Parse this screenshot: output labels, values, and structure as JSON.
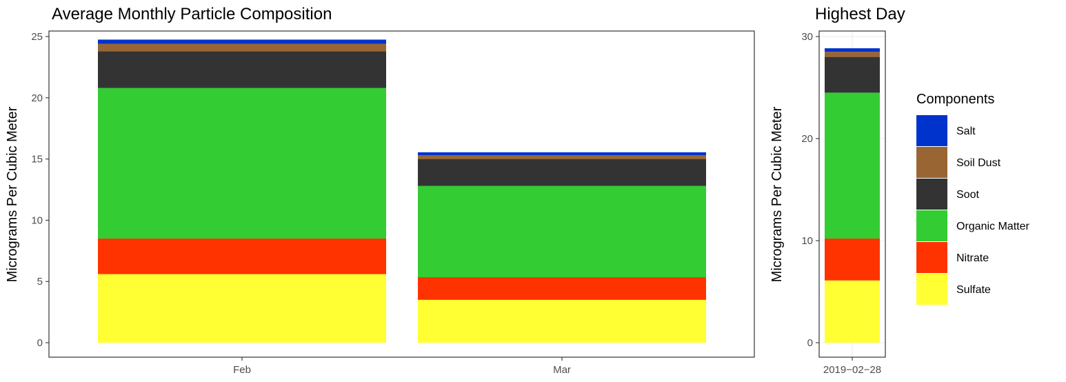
{
  "chart_data": [
    {
      "type": "bar",
      "stacked": true,
      "title": "Average Monthly Particle Composition",
      "xlabel": "",
      "ylabel": "Micrograms Per Cubic Meter",
      "categories": [
        "Feb",
        "Mar"
      ],
      "ylim": [
        0,
        25
      ],
      "yticks": [
        0,
        5,
        10,
        15,
        20,
        25
      ],
      "grid": false,
      "series": [
        {
          "name": "Sulfate",
          "color": "#FFFF33",
          "values": [
            5.6,
            3.5
          ]
        },
        {
          "name": "Nitrate",
          "color": "#FF3300",
          "values": [
            2.9,
            1.85
          ]
        },
        {
          "name": "Organic Matter",
          "color": "#33CC33",
          "values": [
            12.3,
            7.45
          ]
        },
        {
          "name": "Soot",
          "color": "#333333",
          "values": [
            3.0,
            2.2
          ]
        },
        {
          "name": "Soil Dust",
          "color": "#996633",
          "values": [
            0.6,
            0.3
          ]
        },
        {
          "name": "Salt",
          "color": "#0033CC",
          "values": [
            0.35,
            0.25
          ]
        }
      ]
    },
    {
      "type": "bar",
      "stacked": true,
      "title": "Highest Day",
      "xlabel": "",
      "ylabel": "Micrograms Per Cubic Meter",
      "categories": [
        "2019−02−28"
      ],
      "ylim": [
        0,
        30
      ],
      "yticks": [
        0,
        10,
        20,
        30
      ],
      "grid": true,
      "series": [
        {
          "name": "Sulfate",
          "color": "#FFFF33",
          "values": [
            6.1
          ]
        },
        {
          "name": "Nitrate",
          "color": "#FF3300",
          "values": [
            4.1
          ]
        },
        {
          "name": "Organic Matter",
          "color": "#33CC33",
          "values": [
            14.3
          ]
        },
        {
          "name": "Soot",
          "color": "#333333",
          "values": [
            3.5
          ]
        },
        {
          "name": "Soil Dust",
          "color": "#996633",
          "values": [
            0.5
          ]
        },
        {
          "name": "Salt",
          "color": "#0033CC",
          "values": [
            0.35
          ]
        }
      ]
    }
  ],
  "legend": {
    "title": "Components",
    "placement": "right",
    "items": [
      {
        "label": "Salt",
        "color": "#0033CC"
      },
      {
        "label": "Soil Dust",
        "color": "#996633"
      },
      {
        "label": "Soot",
        "color": "#333333"
      },
      {
        "label": "Organic Matter",
        "color": "#33CC33"
      },
      {
        "label": "Nitrate",
        "color": "#FF3300"
      },
      {
        "label": "Sulfate",
        "color": "#FFFF33"
      }
    ]
  }
}
